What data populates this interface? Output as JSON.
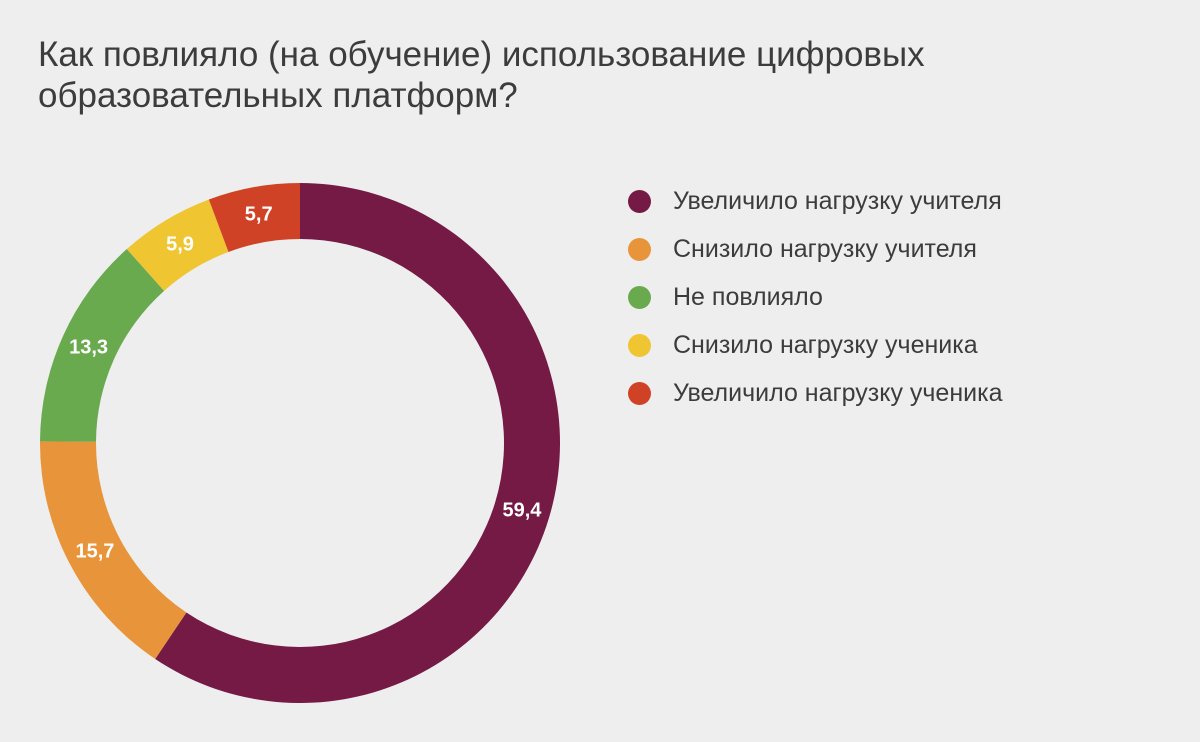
{
  "chart_data": {
    "type": "pie",
    "variant": "donut",
    "title": "Как повлияло (на обучение) использование цифровых образовательных платформ?",
    "legend_position": "right",
    "categories": [
      "Увеличило нагрузку учителя",
      "Снизило нагрузку учителя",
      "Не повлияло",
      "Снизило нагрузку ученика",
      "Увеличило нагрузку ученика"
    ],
    "values": [
      59.4,
      15.7,
      13.3,
      5.9,
      5.7
    ],
    "value_labels": [
      "59,4",
      "15,7",
      "13,3",
      "5,9",
      "5,7"
    ],
    "colors": [
      "#741a45",
      "#e8943a",
      "#6aaa4f",
      "#f0c532",
      "#d04226"
    ]
  }
}
